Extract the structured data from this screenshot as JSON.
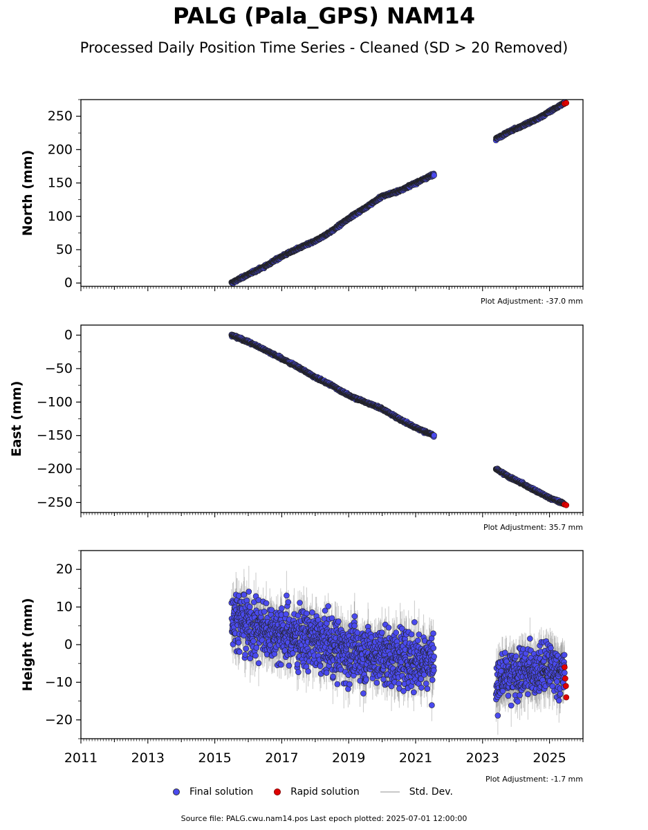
{
  "title": "PALG (Pala_GPS) NAM14",
  "subtitle": "Processed Daily Position Time Series - Cleaned (SD > 20 Removed)",
  "footer": "Source file: PALG.cwu.nam14.pos  Last epoch plotted: 2025-07-01 12:00:00",
  "legend": {
    "final": "Final solution",
    "rapid": "Rapid solution",
    "std": "Std. Dev."
  },
  "colors": {
    "final": "#4a4aee",
    "rapid": "#e00000",
    "std": "#999999"
  },
  "chart_data": [
    {
      "type": "scatter",
      "ylabel": "North (mm)",
      "adjustment": "Plot Adjustment: -37.0 mm",
      "xlim": [
        2011,
        2026
      ],
      "ylim": [
        -5,
        275
      ],
      "yticks": [
        0,
        50,
        100,
        150,
        200,
        250
      ],
      "series": [
        {
          "name": "Final solution",
          "segments": [
            {
              "x": [
                2015.5,
                2016.0,
                2016.5,
                2017.0,
                2017.5,
                2018.0,
                2018.5,
                2019.0,
                2019.5,
                2020.0,
                2020.5,
                2021.0,
                2021.55
              ],
              "y": [
                0,
                13,
                25,
                40,
                52,
                63,
                78,
                97,
                113,
                130,
                138,
                150,
                163
              ]
            },
            {
              "x": [
                2023.4,
                2023.8,
                2024.2,
                2024.6,
                2025.0,
                2025.45
              ],
              "y": [
                216,
                227,
                236,
                245,
                257,
                270
              ]
            }
          ],
          "scatter": [
            2.0,
            2.0
          ]
        },
        {
          "name": "Rapid solution",
          "x": [
            2025.45,
            2025.5
          ],
          "y": [
            269,
            270
          ]
        }
      ]
    },
    {
      "type": "scatter",
      "ylabel": "East (mm)",
      "adjustment": "Plot Adjustment: 35.7 mm",
      "xlim": [
        2011,
        2026
      ],
      "ylim": [
        -265,
        15
      ],
      "yticks": [
        0,
        -50,
        -100,
        -150,
        -200,
        -250
      ],
      "series": [
        {
          "name": "Final solution",
          "segments": [
            {
              "x": [
                2015.5,
                2016.0,
                2016.5,
                2017.0,
                2017.5,
                2018.0,
                2018.5,
                2019.0,
                2019.5,
                2020.0,
                2020.5,
                2021.0,
                2021.55
              ],
              "y": [
                0,
                -10,
                -22,
                -35,
                -48,
                -63,
                -75,
                -90,
                -100,
                -110,
                -125,
                -138,
                -150
              ]
            },
            {
              "x": [
                2023.4,
                2023.8,
                2024.2,
                2024.6,
                2025.0,
                2025.45
              ],
              "y": [
                -200,
                -212,
                -222,
                -233,
                -243,
                -252
              ]
            }
          ],
          "scatter": [
            2.0,
            2.0
          ]
        },
        {
          "name": "Rapid solution",
          "x": [
            2025.45,
            2025.5
          ],
          "y": [
            -253,
            -254
          ]
        }
      ]
    },
    {
      "type": "scatter",
      "ylabel": "Height (mm)",
      "adjustment": "Plot Adjustment: -1.7 mm",
      "xlim": [
        2011,
        2026
      ],
      "ylim": [
        -25,
        25
      ],
      "yticks": [
        20,
        10,
        0,
        -10,
        -20
      ],
      "xticks": [
        2011,
        2013,
        2015,
        2017,
        2019,
        2021,
        2023,
        2025
      ],
      "series": [
        {
          "name": "Final solution",
          "segments": [
            {
              "x": [
                2015.5,
                2016.0,
                2017.0,
                2018.0,
                2019.0,
                2020.0,
                2021.0,
                2021.55
              ],
              "y": [
                8,
                5,
                3,
                1,
                -2,
                -3,
                -4,
                -4
              ]
            },
            {
              "x": [
                2023.4,
                2024.0,
                2024.5,
                2025.0,
                2025.45
              ],
              "y": [
                -10,
                -8,
                -7,
                -6,
                -8
              ]
            }
          ],
          "scatter": [
            6.0,
            5.0
          ]
        },
        {
          "name": "Rapid solution",
          "x": [
            2025.45,
            2025.47,
            2025.49,
            2025.5
          ],
          "y": [
            -6,
            -9,
            -11,
            -14
          ]
        }
      ]
    }
  ]
}
